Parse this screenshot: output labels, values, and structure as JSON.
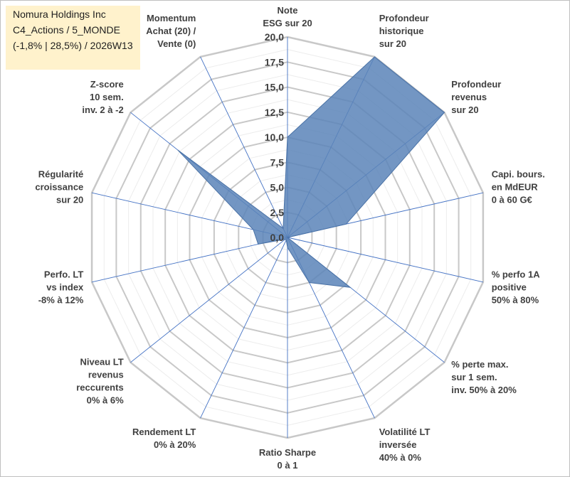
{
  "info": {
    "line1": "Nomura Holdings Inc",
    "line2": "C4_Actions / 5_MONDE",
    "line3": "(-1,8% | 28,5%) / 2026W13"
  },
  "colors": {
    "fill": "#5b84b8",
    "stroke": "#4a72a6",
    "grid": "#c8c8c8",
    "spoke": "#4472c4",
    "text": "#404040",
    "info_bg": "#fff2cc"
  },
  "chart_data": {
    "type": "radar",
    "title": "",
    "rmin": 0,
    "rmax": 20,
    "ticks": [
      "0,0",
      "2,5",
      "5,0",
      "7,5",
      "10,0",
      "12,5",
      "15,0",
      "17,5",
      "20,0"
    ],
    "axes": [
      {
        "lines": [
          "Note",
          "ESG sur 20"
        ],
        "value": 10
      },
      {
        "lines": [
          "Profondeur",
          "historique",
          "sur 20"
        ],
        "value": 20
      },
      {
        "lines": [
          "Profondeur",
          "revenus",
          "sur 20"
        ],
        "value": 20
      },
      {
        "lines": [
          "Capi. bours.",
          "en MdEUR",
          "0 à 60 G€"
        ],
        "value": 6
      },
      {
        "lines": [
          "% perfo 1A",
          "positive",
          "50% à 80%"
        ],
        "value": 0
      },
      {
        "lines": [
          "% perte max.",
          "sur 1 sem.",
          "inv. 50% à 20%"
        ],
        "value": 8
      },
      {
        "lines": [
          "Volatilité LT",
          "inversée",
          "40% à 0%"
        ],
        "value": 5
      },
      {
        "lines": [
          "Ratio Sharpe",
          "0 à 1"
        ],
        "value": 1
      },
      {
        "lines": [
          "Rendement LT",
          "0% à 20%"
        ],
        "value": 0.3
      },
      {
        "lines": [
          "Niveau LT",
          "revenus",
          "reccurents",
          "0% à 6%"
        ],
        "value": 0.3
      },
      {
        "lines": [
          "Perfo. LT",
          "vs index",
          "-8% à 12%"
        ],
        "value": 3
      },
      {
        "lines": [
          "Régularité",
          "croissance",
          "sur 20"
        ],
        "value": 3.5
      },
      {
        "lines": [
          "Z-score",
          "10 sem.",
          "inv. 2 à -2"
        ],
        "value": 14
      },
      {
        "lines": [
          "Momentum",
          "Achat (20) /",
          "Vente (0)"
        ],
        "value": 1
      }
    ]
  }
}
